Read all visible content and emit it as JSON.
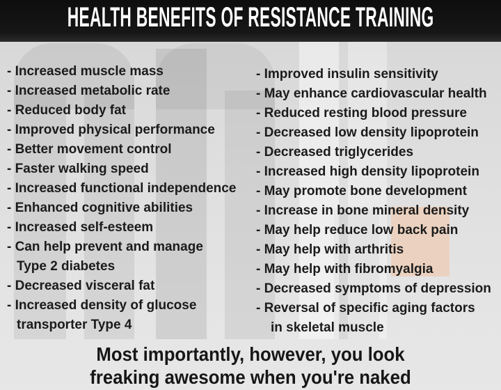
{
  "title": "HEALTH BENEFITS OF RESISTANCE TRAINING",
  "columns": {
    "left": {
      "lines": [
        "- Increased muscle mass",
        "- Increased metabolic rate",
        "- Reduced body fat",
        "- Improved physical performance",
        "- Better movement control",
        "- Faster walking speed",
        "- Increased functional independence",
        "- Enhanced cognitive abilities",
        "- Increased self-esteem",
        "- Can help prevent and manage",
        "Type 2 diabetes",
        "- Decreased visceral fat",
        "- Increased density of glucose",
        "transporter Type 4"
      ]
    },
    "right": {
      "lines": [
        "- Improved insulin sensitivity",
        "- May enhance cardiovascular health",
        "- Reduced resting blood pressure",
        "- Decreased low density lipoprotein",
        "- Decreased triglycerides",
        "- Increased high density lipoprotein",
        "- May promote bone development",
        "- Increase in bone mineral density",
        "- May help reduce low back pain",
        "- May help with arthritis",
        "- May help with fibromyalgia",
        "- Decreased symptoms of depression",
        "- Reversal of specific aging factors",
        "in skeletal muscle"
      ]
    }
  },
  "footer": {
    "line1": "Most importantly, however, you look",
    "line2": "freaking awesome when you're naked"
  },
  "colors": {
    "title_bar": "#141414",
    "title_text": "#ffffff",
    "body_text": "#1b1b1b",
    "background": "#dedede",
    "accent_square": "#eccfba"
  }
}
